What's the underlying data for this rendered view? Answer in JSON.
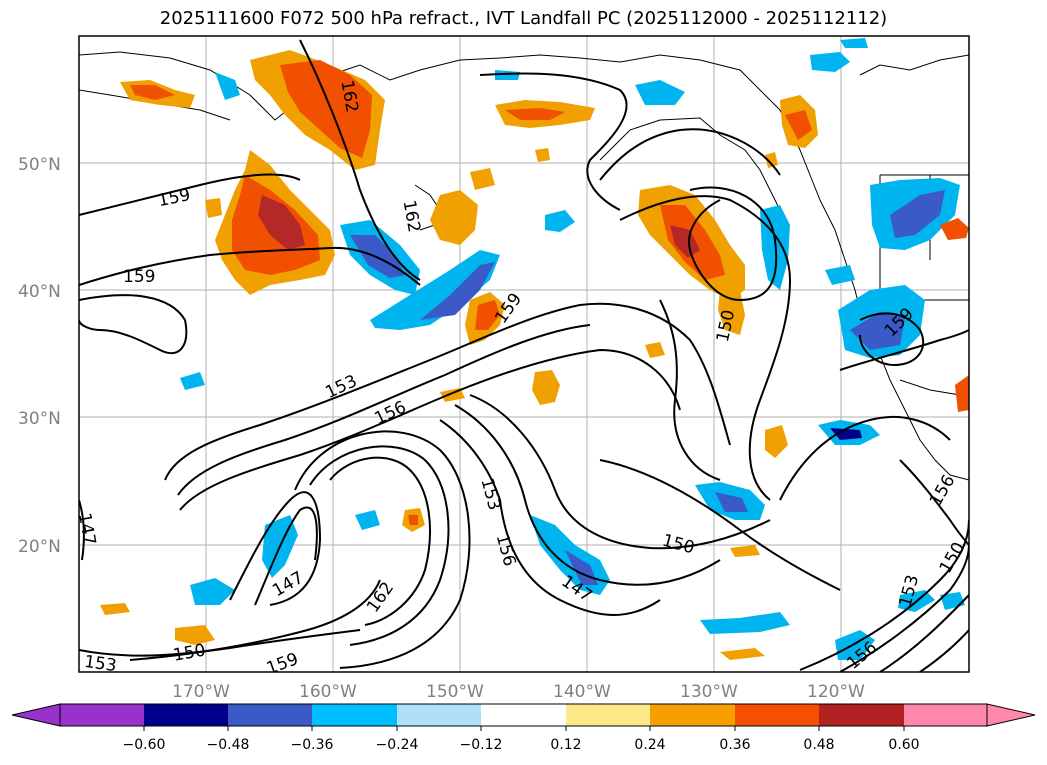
{
  "title": "2025111600 F072 500 hPa refract., IVT Landfall PC (2025112000 - 2025112112)",
  "map": {
    "lat_labels": [
      "50°N",
      "40°N",
      "30°N",
      "20°N"
    ],
    "lon_labels": [
      "170°W",
      "160°W",
      "150°W",
      "140°W",
      "130°W",
      "120°W"
    ],
    "contour_labels": [
      "159",
      "162",
      "159",
      "162",
      "159",
      "153",
      "156",
      "150",
      "153",
      "156",
      "162",
      "147",
      "150",
      "159",
      "153",
      "150",
      "147",
      "156",
      "150",
      "153",
      "156",
      "159",
      "147"
    ],
    "colors": {
      "neg_light": "#aee0fa",
      "neg_mid": "#00b4f0",
      "neg_strong": "#3a5ac8",
      "pos_light": "#f0a000",
      "pos_mid": "#f05000",
      "pos_strong": "#b42828",
      "contour": "#000000",
      "grid": "#b0b0b0"
    }
  },
  "colorbar": {
    "ticks": [
      "−0.60",
      "−0.48",
      "−0.36",
      "−0.24",
      "−0.12",
      "0.12",
      "0.24",
      "0.36",
      "0.48",
      "0.60"
    ],
    "colors": [
      "#9932cc",
      "#00008b",
      "#3a5ac8",
      "#00bfff",
      "#aee0fa",
      "#ffffff",
      "#fce98a",
      "#f5a000",
      "#f55000",
      "#b22222",
      "#ff88aa"
    ]
  }
}
